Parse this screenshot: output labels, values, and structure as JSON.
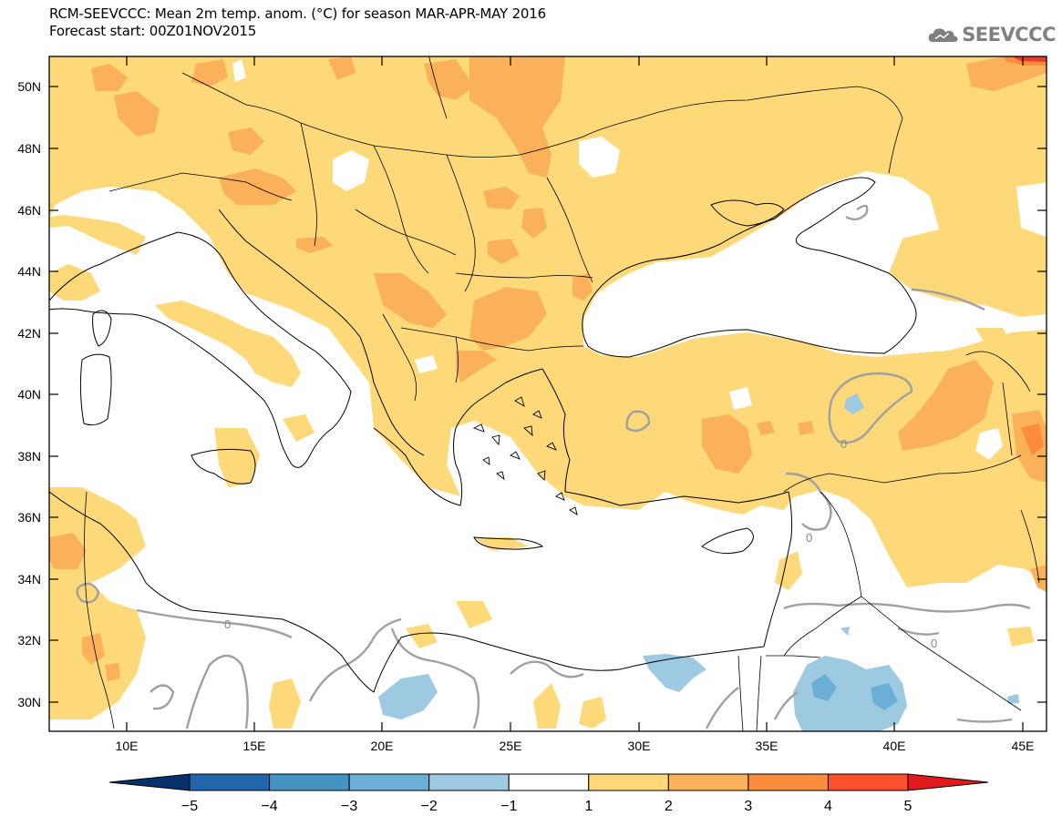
{
  "header": {
    "title_line1": "RCM-SEEVCCC: Mean 2m temp. anom. (°C) for season MAR-APR-MAY 2016",
    "title_line2": "Forecast start: 00Z01NOV2015"
  },
  "logo": {
    "text": "SEEVCCC",
    "icon": "cloud-icon"
  },
  "axes": {
    "lat_labels": [
      "50N",
      "48N",
      "46N",
      "44N",
      "42N",
      "40N",
      "38N",
      "36N",
      "34N",
      "32N",
      "30N"
    ],
    "lon_labels": [
      "10E",
      "15E",
      "20E",
      "25E",
      "30E",
      "35E",
      "40E",
      "45E"
    ]
  },
  "contour_labels": [
    "0",
    "0",
    "0",
    "0"
  ],
  "colorbar": {
    "labels": [
      "−5",
      "−4",
      "−3",
      "−2",
      "−1",
      "1",
      "2",
      "3",
      "4",
      "5"
    ],
    "colors": [
      "#08306b",
      "#2166ac",
      "#4393c3",
      "#6baed6",
      "#9ecae1",
      "#ffffff",
      "#fdd97a",
      "#fdb25a",
      "#fc8d3c",
      "#f8512c",
      "#e31a1c"
    ]
  },
  "map_colors": {
    "anom_1_2": "#fdd97a",
    "anom_2_3": "#fbb159",
    "anom_3_4": "#fa8c3b",
    "anom_4_5": "#ef3b2c",
    "anom_m1_m2": "#9ecae1",
    "anom_m2_m3": "#6baed6",
    "zero_contour": "#a0a0a0",
    "coast": "#000000"
  }
}
